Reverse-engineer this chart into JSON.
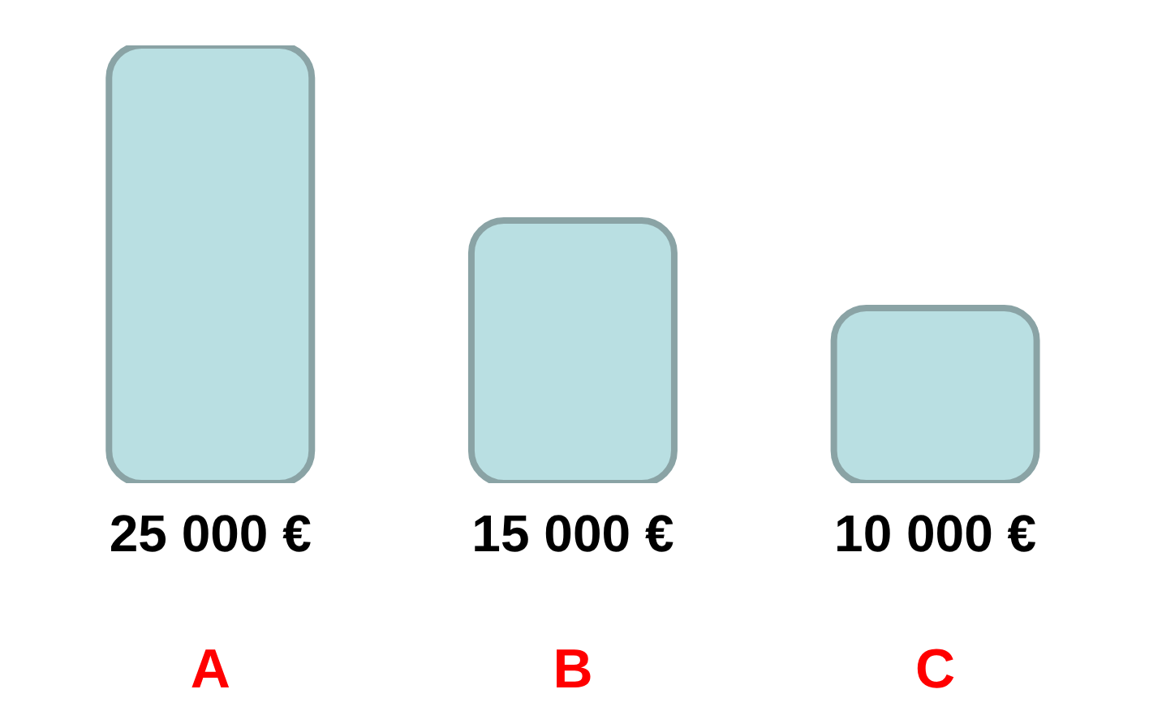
{
  "chart_data": {
    "type": "bar",
    "categories": [
      "A",
      "B",
      "C"
    ],
    "values": [
      25000,
      15000,
      10000
    ],
    "value_labels": [
      "25 000 €",
      "15 000 €",
      "10 000 €"
    ],
    "color": "#b9dfe2"
  }
}
